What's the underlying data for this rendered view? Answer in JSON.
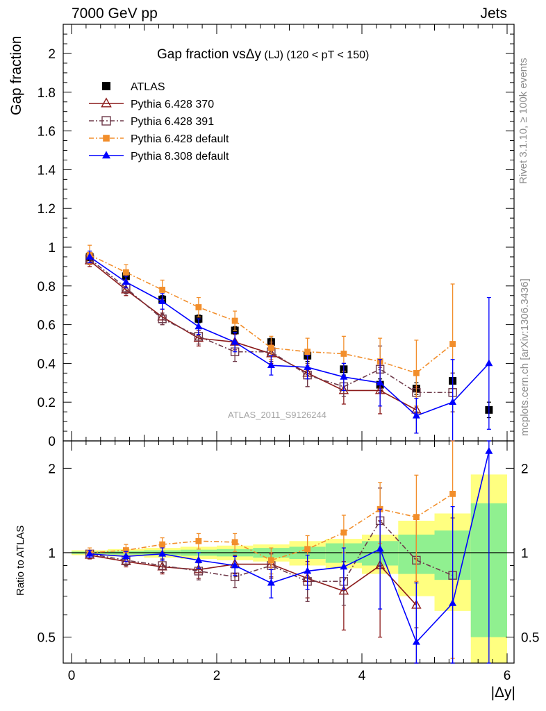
{
  "header": {
    "energy_label": "7000 GeV pp",
    "category_label": "Jets"
  },
  "side_notes": {
    "rivet": "Rivet 3.1.10, ≥ 100k events",
    "mcplots": "mcplots.cern.ch [arXiv:1306.3436]"
  },
  "chart_data": [
    {
      "type": "scatter",
      "title_main": "Gap fraction vsΔy",
      "title_sub": " (LJ) (120 < pT < 150)",
      "ylabel": "Gap fraction",
      "xlabel": "|Δy|",
      "ylim": [
        0,
        2.15
      ],
      "xlim": [
        -0.1,
        6.0
      ],
      "yticks": [
        "0",
        "0.2",
        "0.4",
        "0.6",
        "0.8",
        "1",
        "1.2",
        "1.4",
        "1.6",
        "1.8",
        "2"
      ],
      "watermark": "ATLAS_2011_S9126244",
      "legend_position": "top-left",
      "x": [
        0.25,
        0.75,
        1.25,
        1.75,
        2.25,
        2.75,
        3.25,
        3.75,
        4.25,
        4.75,
        5.25,
        5.75
      ],
      "series": [
        {
          "name": "ATLAS",
          "color": "#000000",
          "marker": "filled-square",
          "line": "none",
          "values": [
            0.95,
            0.85,
            0.73,
            0.63,
            0.57,
            0.51,
            0.44,
            0.37,
            0.29,
            0.27,
            0.31,
            0.16
          ],
          "errors": [
            0.02,
            0.02,
            0.02,
            0.02,
            0.02,
            0.02,
            0.03,
            0.03,
            0.03,
            0.03,
            0.04,
            0.04
          ]
        },
        {
          "name": "Pythia 6.428 370",
          "color": "#8b1a1a",
          "marker": "open-triangle",
          "line": "solid",
          "values": [
            0.93,
            0.78,
            0.64,
            0.53,
            0.51,
            0.45,
            0.35,
            0.26,
            0.26,
            0.16
          ],
          "errors": [
            0.03,
            0.03,
            0.04,
            0.04,
            0.04,
            0.05,
            0.07,
            0.07,
            0.12,
            0.12
          ]
        },
        {
          "name": "Pythia 6.428 391",
          "color": "#6e3a4a",
          "marker": "open-square",
          "line": "dashdot",
          "values": [
            0.94,
            0.79,
            0.63,
            0.54,
            0.46,
            0.46,
            0.34,
            0.28,
            0.37,
            0.25,
            0.25
          ],
          "errors": [
            0.03,
            0.03,
            0.03,
            0.04,
            0.05,
            0.05,
            0.06,
            0.05,
            0.12,
            0.1,
            0.1
          ]
        },
        {
          "name": "Pythia 6.428 default",
          "color": "#f28e2b",
          "marker": "filled-small-square",
          "line": "dashdot",
          "values": [
            0.96,
            0.87,
            0.78,
            0.69,
            0.62,
            0.48,
            0.46,
            0.45,
            0.41,
            0.35,
            0.5
          ],
          "errors": [
            0.05,
            0.04,
            0.05,
            0.05,
            0.05,
            0.06,
            0.07,
            0.09,
            0.12,
            0.17,
            0.31
          ]
        },
        {
          "name": "Pythia 8.308 default",
          "color": "#0000ff",
          "marker": "filled-triangle",
          "line": "solid",
          "values": [
            0.95,
            0.82,
            0.72,
            0.59,
            0.51,
            0.39,
            0.38,
            0.33,
            0.3,
            0.13,
            0.2,
            0.4
          ],
          "errors": [
            0.03,
            0.03,
            0.04,
            0.04,
            0.05,
            0.05,
            0.06,
            0.07,
            0.12,
            0.09,
            0.22,
            0.34
          ]
        }
      ]
    },
    {
      "type": "scatter",
      "ylabel": "Ratio to ATLAS",
      "xlabel": "|Δy|",
      "ylog": true,
      "ylim": [
        0.42,
        2.35
      ],
      "xticks": [
        "0",
        "2",
        "4",
        "6"
      ],
      "yticks": [
        "0.5",
        "1",
        "2"
      ],
      "reference_line": 1,
      "uncertainty_band": {
        "inner_color": "#90f090",
        "outer_color": "#ffff80",
        "inner": [
          0.01,
          0.015,
          0.02,
          0.025,
          0.03,
          0.04,
          0.05,
          0.08,
          0.1,
          0.16,
          0.2,
          0.5
        ],
        "outer": [
          0.02,
          0.03,
          0.04,
          0.05,
          0.06,
          0.07,
          0.1,
          0.12,
          0.16,
          0.3,
          0.38,
          0.9
        ]
      },
      "series": [
        {
          "name": "Pythia 6.428 370",
          "color": "#8b1a1a",
          "values": [
            0.98,
            0.93,
            0.89,
            0.87,
            0.91,
            0.91,
            0.81,
            0.73,
            0.9,
            0.65
          ],
          "errors": [
            0.03,
            0.04,
            0.05,
            0.06,
            0.07,
            0.09,
            0.12,
            0.2,
            0.4,
            0.3
          ]
        },
        {
          "name": "Pythia 6.428 391",
          "color": "#6e3a4a",
          "values": [
            0.99,
            0.94,
            0.9,
            0.86,
            0.82,
            0.9,
            0.79,
            0.79,
            1.3,
            0.94,
            0.83
          ],
          "errors": [
            0.03,
            0.04,
            0.05,
            0.06,
            0.07,
            0.09,
            0.12,
            0.14,
            0.4,
            0.4,
            0.5
          ]
        },
        {
          "name": "Pythia 6.428 default",
          "color": "#f28e2b",
          "values": [
            1.0,
            1.02,
            1.07,
            1.1,
            1.09,
            0.94,
            1.03,
            1.18,
            1.43,
            1.34,
            1.62
          ],
          "errors": [
            0.04,
            0.05,
            0.06,
            0.07,
            0.08,
            0.1,
            0.12,
            0.18,
            0.35,
            0.55,
            1.2
          ]
        },
        {
          "name": "Pythia 8.308 default",
          "color": "#0000ff",
          "values": [
            0.99,
            0.97,
            0.99,
            0.94,
            0.9,
            0.78,
            0.86,
            0.89,
            1.03,
            0.48,
            0.66,
            2.3
          ],
          "errors": [
            0.03,
            0.04,
            0.05,
            0.06,
            0.07,
            0.09,
            0.12,
            0.15,
            0.4,
            0.3,
            0.8,
            2.0
          ]
        }
      ]
    }
  ]
}
